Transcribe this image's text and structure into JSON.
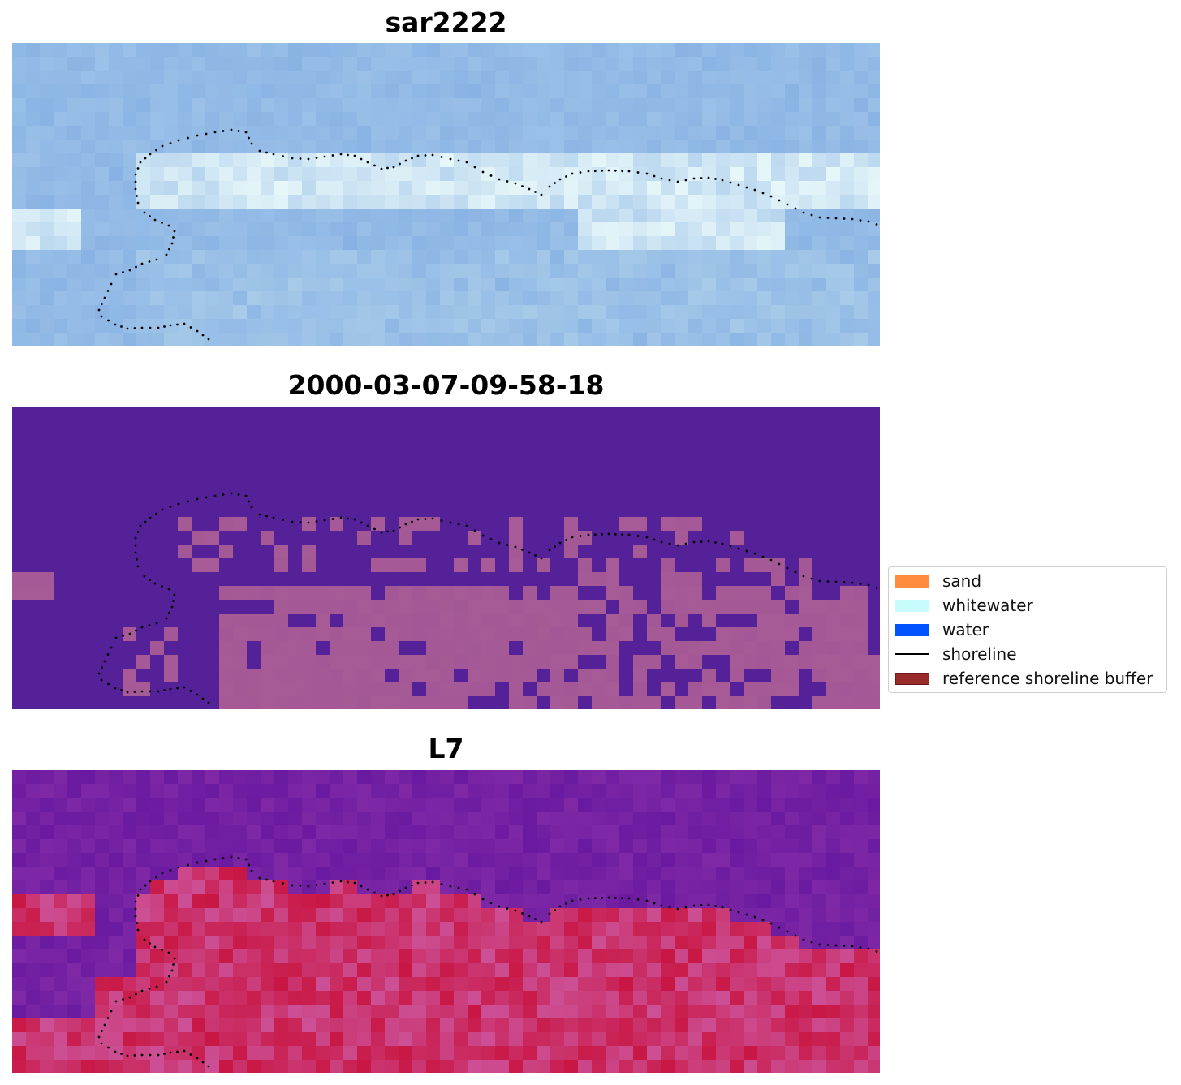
{
  "panels": [
    {
      "title": "sar2222",
      "style": "rgb"
    },
    {
      "title": "2000-03-07-09-58-18",
      "style": "class"
    },
    {
      "title": "L7",
      "style": "index"
    }
  ],
  "legend": {
    "items": [
      {
        "label": "sand",
        "kind": "patch",
        "color": "#ff8c3f"
      },
      {
        "label": "whitewater",
        "kind": "patch",
        "color": "#c8fbfb"
      },
      {
        "label": "water",
        "kind": "patch",
        "color": "#0053ff"
      },
      {
        "label": "shoreline",
        "kind": "line",
        "color": "#000000"
      },
      {
        "label": "reference shoreline buffer",
        "kind": "patch",
        "color": "#9a2b2b",
        "edge": "#6b1a1a"
      }
    ]
  },
  "colors": {
    "rgb_base": "#8fb8e6",
    "class_background": "#542199",
    "class_foreground": "#a35796",
    "index_low": "#6a1aa0",
    "index_mid": "#cc5096",
    "index_high": "#c8103a",
    "shoreline_dots": "#000000"
  }
}
